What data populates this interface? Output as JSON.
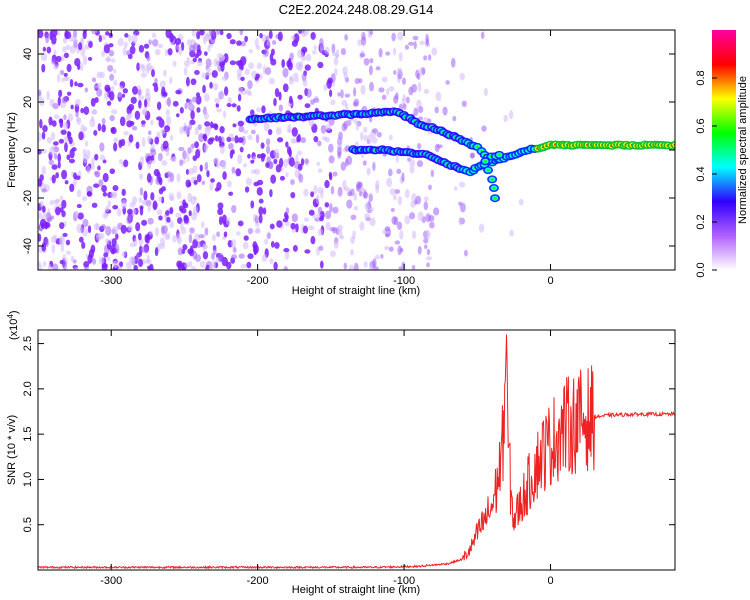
{
  "chart_data": [
    {
      "type": "heatmap",
      "title": "C2E2.2024.248.08.29.G14",
      "xlabel": "Height of straight line (km)",
      "ylabel": "Frequency (Hz)",
      "xlim": [
        -350,
        85
      ],
      "ylim": [
        -50,
        50
      ],
      "x_ticks": [
        -300,
        -200,
        -100,
        0
      ],
      "y_ticks": [
        -40,
        -20,
        0,
        20,
        40
      ],
      "colorbar": {
        "label": "Normalized spectral amplitude",
        "range": [
          0,
          1
        ],
        "ticks": [
          "0.0",
          "0.2",
          "0.4",
          "0.6",
          "0.8"
        ],
        "colors": [
          "#ffffff",
          "#b060ff",
          "#3000ff",
          "#00ffff",
          "#00ff00",
          "#ffff00",
          "#ff0000",
          "#ff00a0"
        ]
      },
      "tracks": [
        {
          "points": [
            [
              -205,
              13
            ],
            [
              -165,
              14
            ],
            [
              -130,
              15
            ],
            [
              -105,
              16
            ],
            [
              -90,
              11
            ],
            [
              -75,
              8
            ],
            [
              -60,
              4
            ],
            [
              -50,
              1
            ],
            [
              -45,
              -2
            ],
            [
              -40,
              -5
            ],
            [
              -30,
              -3
            ],
            [
              -15,
              0
            ],
            [
              0,
              2
            ],
            [
              40,
              2
            ],
            [
              85,
              2
            ]
          ]
        },
        {
          "points": [
            [
              -135,
              0
            ],
            [
              -115,
              0
            ],
            [
              -100,
              -1
            ],
            [
              -85,
              -2
            ],
            [
              -70,
              -6
            ],
            [
              -55,
              -9
            ],
            [
              -45,
              -6
            ],
            [
              -40,
              -3
            ],
            [
              -35,
              -2
            ]
          ]
        },
        {
          "points": [
            [
              -45,
              -5
            ],
            [
              -40,
              -12
            ],
            [
              -38,
              -20
            ]
          ]
        }
      ]
    },
    {
      "type": "line",
      "title": "",
      "xlabel": "Height of straight line (km)",
      "ylabel": "SNR (10 * v/v)",
      "y_multiplier": "(x10",
      "y_exponent": "4",
      "y_multiplier_close": ")",
      "xlim": [
        -350,
        85
      ],
      "ylim": [
        0,
        2.65
      ],
      "x_ticks": [
        -300,
        -200,
        -100,
        0
      ],
      "y_ticks": [
        0.5,
        1.0,
        1.5,
        2.0,
        2.5
      ],
      "line_color": "#ee2222",
      "envelope": {
        "x": [
          -350,
          -200,
          -120,
          -90,
          -70,
          -60,
          -55,
          -50,
          -45,
          -40,
          -37,
          -35,
          -33,
          -31,
          -30,
          -29,
          -27,
          -25,
          -20,
          -15,
          -10,
          -5,
          0,
          5,
          10,
          20,
          30,
          40,
          60,
          85
        ],
        "y": [
          0.03,
          0.03,
          0.03,
          0.04,
          0.07,
          0.12,
          0.22,
          0.4,
          0.55,
          0.7,
          0.9,
          1.1,
          1.3,
          2.0,
          2.65,
          1.5,
          0.8,
          0.55,
          0.75,
          0.95,
          1.15,
          1.3,
          1.4,
          1.5,
          1.58,
          1.65,
          1.69,
          1.71,
          1.72,
          1.72
        ]
      }
    }
  ]
}
